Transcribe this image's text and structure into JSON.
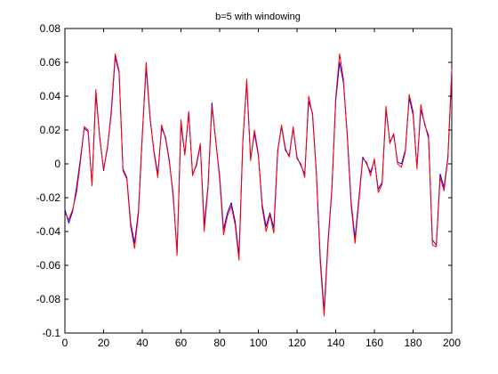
{
  "chart_data": {
    "type": "line",
    "title": "b=5 with windowing",
    "xlabel": "",
    "ylabel": "",
    "xlim": [
      0,
      200
    ],
    "ylim": [
      -0.1,
      0.08
    ],
    "grid": false,
    "x_ticks": [
      0,
      20,
      40,
      60,
      80,
      100,
      120,
      140,
      160,
      180,
      200
    ],
    "x_tick_labels": [
      "0",
      "20",
      "40",
      "60",
      "80",
      "100",
      "120",
      "140",
      "160",
      "180",
      "200"
    ],
    "y_ticks": [
      -0.1,
      -0.08,
      -0.06,
      -0.04,
      -0.02,
      0,
      0.02,
      0.04,
      0.06,
      0.08
    ],
    "y_tick_labels": [
      "-0.1",
      "-0.08",
      "-0.06",
      "-0.04",
      "-0.02",
      "0",
      "0.02",
      "0.04",
      "0.06",
      "0.08"
    ],
    "series": [
      {
        "color": "#0000ff",
        "x": [
          0,
          2,
          4,
          6,
          8,
          10,
          12,
          14,
          16,
          18,
          20,
          22,
          24,
          26,
          28,
          30,
          32,
          34,
          36,
          38,
          40,
          42,
          44,
          46,
          48,
          50,
          52,
          54,
          56,
          58,
          60,
          62,
          64,
          66,
          68,
          70,
          72,
          74,
          76,
          78,
          80,
          82,
          84,
          86,
          88,
          90,
          92,
          94,
          96,
          98,
          100,
          102,
          104,
          106,
          108,
          110,
          112,
          114,
          116,
          118,
          120,
          122,
          124,
          126,
          128,
          130,
          132,
          134,
          136,
          138,
          140,
          142,
          144,
          146,
          148,
          150,
          152,
          154,
          156,
          158,
          160,
          162,
          164,
          166,
          168,
          170,
          172,
          174,
          176,
          178,
          180,
          182,
          184,
          186,
          188,
          190,
          192,
          194,
          196,
          198,
          200
        ],
        "y": [
          -0.027,
          -0.035,
          -0.028,
          -0.014,
          0.003,
          0.021,
          0.019,
          -0.012,
          0.041,
          0.016,
          -0.004,
          0.01,
          0.03,
          0.063,
          0.054,
          -0.003,
          -0.008,
          -0.035,
          -0.047,
          -0.028,
          0.017,
          0.057,
          0.027,
          0.008,
          -0.006,
          0.021,
          0.016,
          0.002,
          -0.02,
          -0.052,
          0.023,
          0.006,
          0.03,
          -0.006,
          -0.001,
          0.011,
          -0.036,
          -0.013,
          0.036,
          0.013,
          -0.007,
          -0.039,
          -0.029,
          -0.023,
          -0.034,
          -0.054,
          0.014,
          0.048,
          0.003,
          0.018,
          0.005,
          -0.024,
          -0.037,
          -0.029,
          -0.038,
          0.008,
          0.022,
          0.008,
          0.005,
          0.021,
          0.004,
          -0.001,
          -0.006,
          0.037,
          0.03,
          -0.005,
          -0.055,
          -0.087,
          -0.046,
          -0.015,
          0.037,
          0.06,
          0.048,
          0.017,
          -0.023,
          -0.044,
          -0.02,
          0.004,
          0.0,
          -0.005,
          0.002,
          -0.015,
          -0.011,
          0.032,
          0.013,
          0.017,
          0.001,
          0.0,
          0.008,
          0.039,
          0.029,
          -0.002,
          0.032,
          0.024,
          0.015,
          -0.045,
          -0.048,
          -0.006,
          -0.014,
          0.004,
          0.054
        ]
      },
      {
        "color": "#ff0000",
        "x": [
          0,
          2,
          4,
          6,
          8,
          10,
          12,
          14,
          16,
          18,
          20,
          22,
          24,
          26,
          28,
          30,
          32,
          34,
          36,
          38,
          40,
          42,
          44,
          46,
          48,
          50,
          52,
          54,
          56,
          58,
          60,
          62,
          64,
          66,
          68,
          70,
          72,
          74,
          76,
          78,
          80,
          82,
          84,
          86,
          88,
          90,
          92,
          94,
          96,
          98,
          100,
          102,
          104,
          106,
          108,
          110,
          112,
          114,
          116,
          118,
          120,
          122,
          124,
          126,
          128,
          130,
          132,
          134,
          136,
          138,
          140,
          142,
          144,
          146,
          148,
          150,
          152,
          154,
          156,
          158,
          160,
          162,
          164,
          166,
          168,
          170,
          172,
          174,
          176,
          178,
          180,
          182,
          184,
          186,
          188,
          190,
          192,
          194,
          196,
          198,
          200
        ],
        "y": [
          -0.029,
          -0.033,
          -0.027,
          -0.017,
          0.001,
          0.022,
          0.02,
          -0.013,
          0.044,
          0.015,
          -0.003,
          0.009,
          0.032,
          0.065,
          0.055,
          -0.004,
          -0.009,
          -0.037,
          -0.05,
          -0.03,
          0.016,
          0.06,
          0.028,
          0.007,
          -0.008,
          0.023,
          0.015,
          0.001,
          -0.018,
          -0.054,
          0.026,
          0.005,
          0.031,
          -0.007,
          0.0,
          0.012,
          -0.04,
          -0.014,
          0.034,
          0.014,
          -0.009,
          -0.042,
          -0.031,
          -0.025,
          -0.036,
          -0.057,
          0.013,
          0.05,
          0.002,
          0.02,
          0.006,
          -0.026,
          -0.04,
          -0.03,
          -0.041,
          0.007,
          0.023,
          0.009,
          0.004,
          0.022,
          0.003,
          0.0,
          -0.008,
          0.04,
          0.029,
          -0.006,
          -0.058,
          -0.09,
          -0.048,
          -0.016,
          0.039,
          0.065,
          0.05,
          0.016,
          -0.025,
          -0.047,
          -0.022,
          0.003,
          0.001,
          -0.007,
          0.003,
          -0.017,
          -0.012,
          0.034,
          0.012,
          0.018,
          0.0,
          -0.002,
          0.007,
          0.041,
          0.031,
          -0.003,
          0.035,
          0.023,
          0.017,
          -0.048,
          -0.049,
          -0.008,
          -0.016,
          0.003,
          0.056
        ]
      }
    ]
  }
}
